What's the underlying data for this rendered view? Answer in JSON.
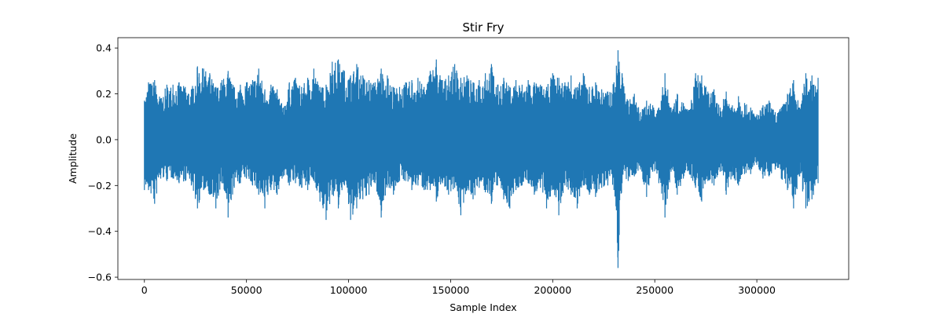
{
  "chart_data": {
    "type": "line",
    "title": "Stir Fry",
    "xlabel": "Sample Index",
    "ylabel": "Amplitude",
    "xlim": [
      -13000,
      345000
    ],
    "ylim": [
      -0.61,
      0.445
    ],
    "x_ticks": [
      0,
      50000,
      100000,
      150000,
      200000,
      250000,
      300000
    ],
    "y_ticks": [
      -0.6,
      -0.4,
      -0.2,
      0.0,
      0.2,
      0.4
    ],
    "grid": false,
    "legend": "none",
    "series": [
      {
        "color": "#1f77b4",
        "sample_count": 331000,
        "envelope_x": [
          0,
          2000,
          5000,
          8000,
          11000,
          14000,
          17000,
          20000,
          23000,
          26000,
          29000,
          32000,
          35000,
          38000,
          41000,
          44000,
          47000,
          50000,
          53000,
          56000,
          59000,
          62000,
          65000,
          68000,
          71000,
          74000,
          77000,
          80000,
          83000,
          86000,
          89000,
          92000,
          95000,
          98000,
          101000,
          104000,
          107000,
          110000,
          113000,
          116000,
          119000,
          122000,
          125000,
          128000,
          131000,
          134000,
          137000,
          140000,
          143000,
          146000,
          149000,
          152000,
          155000,
          158000,
          161000,
          164000,
          167000,
          170000,
          173000,
          176000,
          179000,
          182000,
          185000,
          188000,
          191000,
          194000,
          197000,
          200000,
          203000,
          206000,
          209000,
          212000,
          215000,
          218000,
          221000,
          224000,
          227000,
          230000,
          232000,
          234000,
          237000,
          240000,
          243000,
          246000,
          249000,
          252000,
          255000,
          258000,
          261000,
          264000,
          267000,
          270000,
          273000,
          276000,
          279000,
          282000,
          285000,
          288000,
          291000,
          294000,
          297000,
          300000,
          303000,
          306000,
          309000,
          312000,
          315000,
          318000,
          321000,
          324000,
          327000,
          330000
        ],
        "envelope_max": [
          0.17,
          0.25,
          0.26,
          0.18,
          0.24,
          0.24,
          0.25,
          0.23,
          0.22,
          0.32,
          0.31,
          0.29,
          0.23,
          0.26,
          0.3,
          0.23,
          0.24,
          0.25,
          0.26,
          0.31,
          0.22,
          0.24,
          0.22,
          0.14,
          0.25,
          0.27,
          0.23,
          0.27,
          0.31,
          0.23,
          0.24,
          0.34,
          0.35,
          0.3,
          0.28,
          0.33,
          0.28,
          0.26,
          0.25,
          0.31,
          0.28,
          0.23,
          0.23,
          0.25,
          0.26,
          0.27,
          0.23,
          0.3,
          0.35,
          0.26,
          0.28,
          0.33,
          0.27,
          0.28,
          0.25,
          0.26,
          0.29,
          0.33,
          0.24,
          0.27,
          0.23,
          0.26,
          0.24,
          0.26,
          0.25,
          0.24,
          0.23,
          0.29,
          0.27,
          0.25,
          0.28,
          0.23,
          0.29,
          0.23,
          0.25,
          0.22,
          0.21,
          0.25,
          0.39,
          0.29,
          0.17,
          0.2,
          0.12,
          0.17,
          0.15,
          0.14,
          0.29,
          0.14,
          0.2,
          0.16,
          0.13,
          0.29,
          0.28,
          0.21,
          0.22,
          0.14,
          0.21,
          0.15,
          0.19,
          0.16,
          0.14,
          0.11,
          0.15,
          0.17,
          0.12,
          0.14,
          0.2,
          0.26,
          0.14,
          0.29,
          0.28,
          0.27
        ],
        "envelope_min": [
          -0.22,
          -0.22,
          -0.28,
          -0.17,
          -0.18,
          -0.17,
          -0.19,
          -0.18,
          -0.2,
          -0.3,
          -0.22,
          -0.24,
          -0.3,
          -0.19,
          -0.34,
          -0.21,
          -0.19,
          -0.17,
          -0.2,
          -0.24,
          -0.3,
          -0.22,
          -0.24,
          -0.16,
          -0.2,
          -0.19,
          -0.21,
          -0.22,
          -0.18,
          -0.27,
          -0.35,
          -0.24,
          -0.3,
          -0.2,
          -0.35,
          -0.3,
          -0.26,
          -0.24,
          -0.19,
          -0.34,
          -0.2,
          -0.24,
          -0.18,
          -0.18,
          -0.22,
          -0.2,
          -0.22,
          -0.22,
          -0.27,
          -0.19,
          -0.24,
          -0.21,
          -0.33,
          -0.22,
          -0.26,
          -0.21,
          -0.23,
          -0.28,
          -0.2,
          -0.26,
          -0.3,
          -0.22,
          -0.2,
          -0.19,
          -0.24,
          -0.21,
          -0.3,
          -0.22,
          -0.33,
          -0.2,
          -0.24,
          -0.3,
          -0.2,
          -0.24,
          -0.25,
          -0.21,
          -0.2,
          -0.22,
          -0.56,
          -0.19,
          -0.18,
          -0.16,
          -0.13,
          -0.25,
          -0.14,
          -0.19,
          -0.34,
          -0.14,
          -0.24,
          -0.17,
          -0.15,
          -0.21,
          -0.27,
          -0.18,
          -0.2,
          -0.14,
          -0.24,
          -0.16,
          -0.2,
          -0.15,
          -0.15,
          -0.11,
          -0.17,
          -0.16,
          -0.13,
          -0.17,
          -0.22,
          -0.3,
          -0.16,
          -0.3,
          -0.26,
          -0.19
        ]
      }
    ]
  }
}
